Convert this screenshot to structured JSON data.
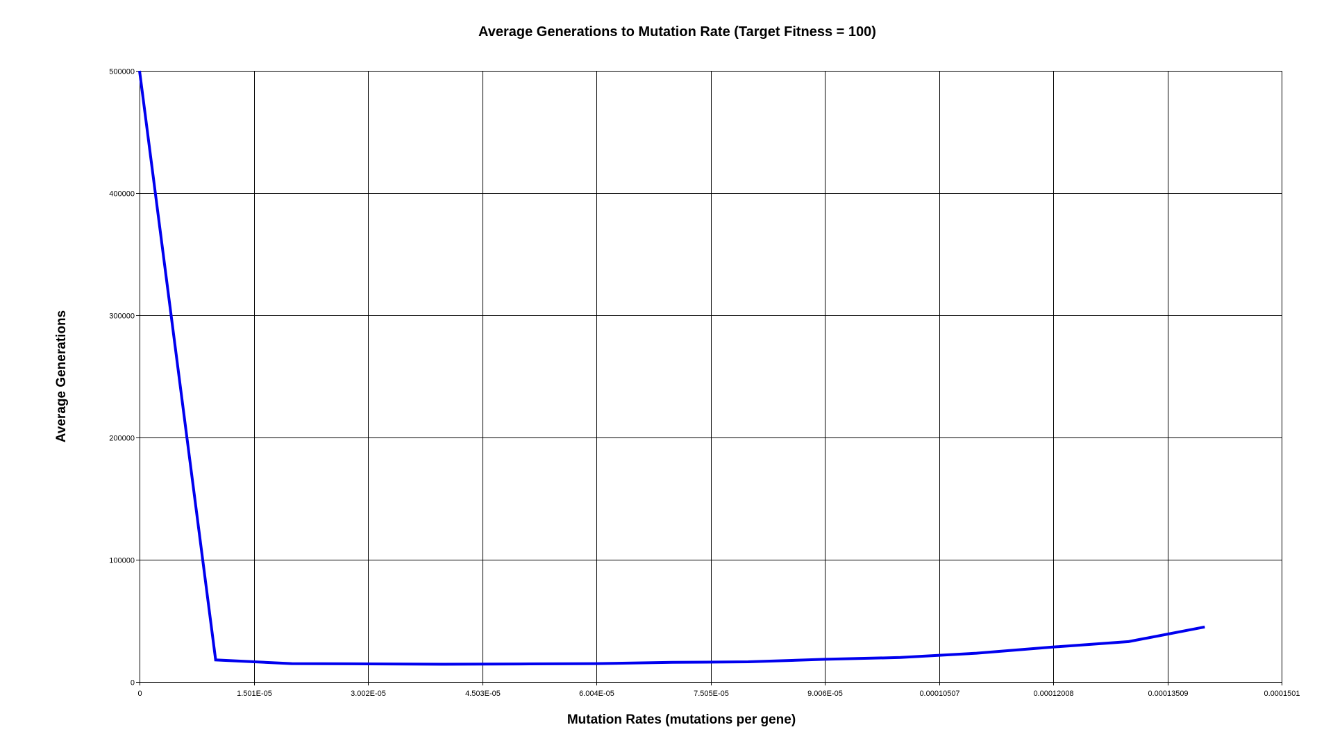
{
  "chart_data": {
    "type": "line",
    "title": "Average Generations to Mutation Rate (Target Fitness = 100)",
    "xlabel": "Mutation Rates (mutations per gene)",
    "ylabel": "Average Generations",
    "xlim": [
      0,
      0.0001501
    ],
    "ylim": [
      0,
      500000
    ],
    "x_ticks": [
      {
        "value": 0,
        "label": "0"
      },
      {
        "value": 1.501e-05,
        "label": "1.501E-05"
      },
      {
        "value": 3.002e-05,
        "label": "3.002E-05"
      },
      {
        "value": 4.503e-05,
        "label": "4.503E-05"
      },
      {
        "value": 6.004e-05,
        "label": "6.004E-05"
      },
      {
        "value": 7.505e-05,
        "label": "7.505E-05"
      },
      {
        "value": 9.006e-05,
        "label": "9.006E-05"
      },
      {
        "value": 0.00010507,
        "label": "0.00010507"
      },
      {
        "value": 0.00012008,
        "label": "0.00012008"
      },
      {
        "value": 0.00013509,
        "label": "0.00013509"
      },
      {
        "value": 0.0001501,
        "label": "0.0001501"
      }
    ],
    "y_ticks": [
      {
        "value": 0,
        "label": "0"
      },
      {
        "value": 100000,
        "label": "100000"
      },
      {
        "value": 200000,
        "label": "200000"
      },
      {
        "value": 300000,
        "label": "300000"
      },
      {
        "value": 400000,
        "label": "400000"
      },
      {
        "value": 500000,
        "label": "500000"
      }
    ],
    "grid": true,
    "legend": "none",
    "series": [
      {
        "color": "#0000ee",
        "x": [
          0,
          1e-05,
          2e-05,
          3e-05,
          4e-05,
          5e-05,
          6e-05,
          7e-05,
          8e-05,
          9e-05,
          0.0001,
          0.00011,
          0.00012,
          0.00013,
          0.00014
        ],
        "y": [
          500000,
          18000,
          15000,
          14800,
          14500,
          14700,
          15000,
          16000,
          16500,
          18500,
          20000,
          23500,
          28500,
          33000,
          45000
        ]
      }
    ]
  }
}
